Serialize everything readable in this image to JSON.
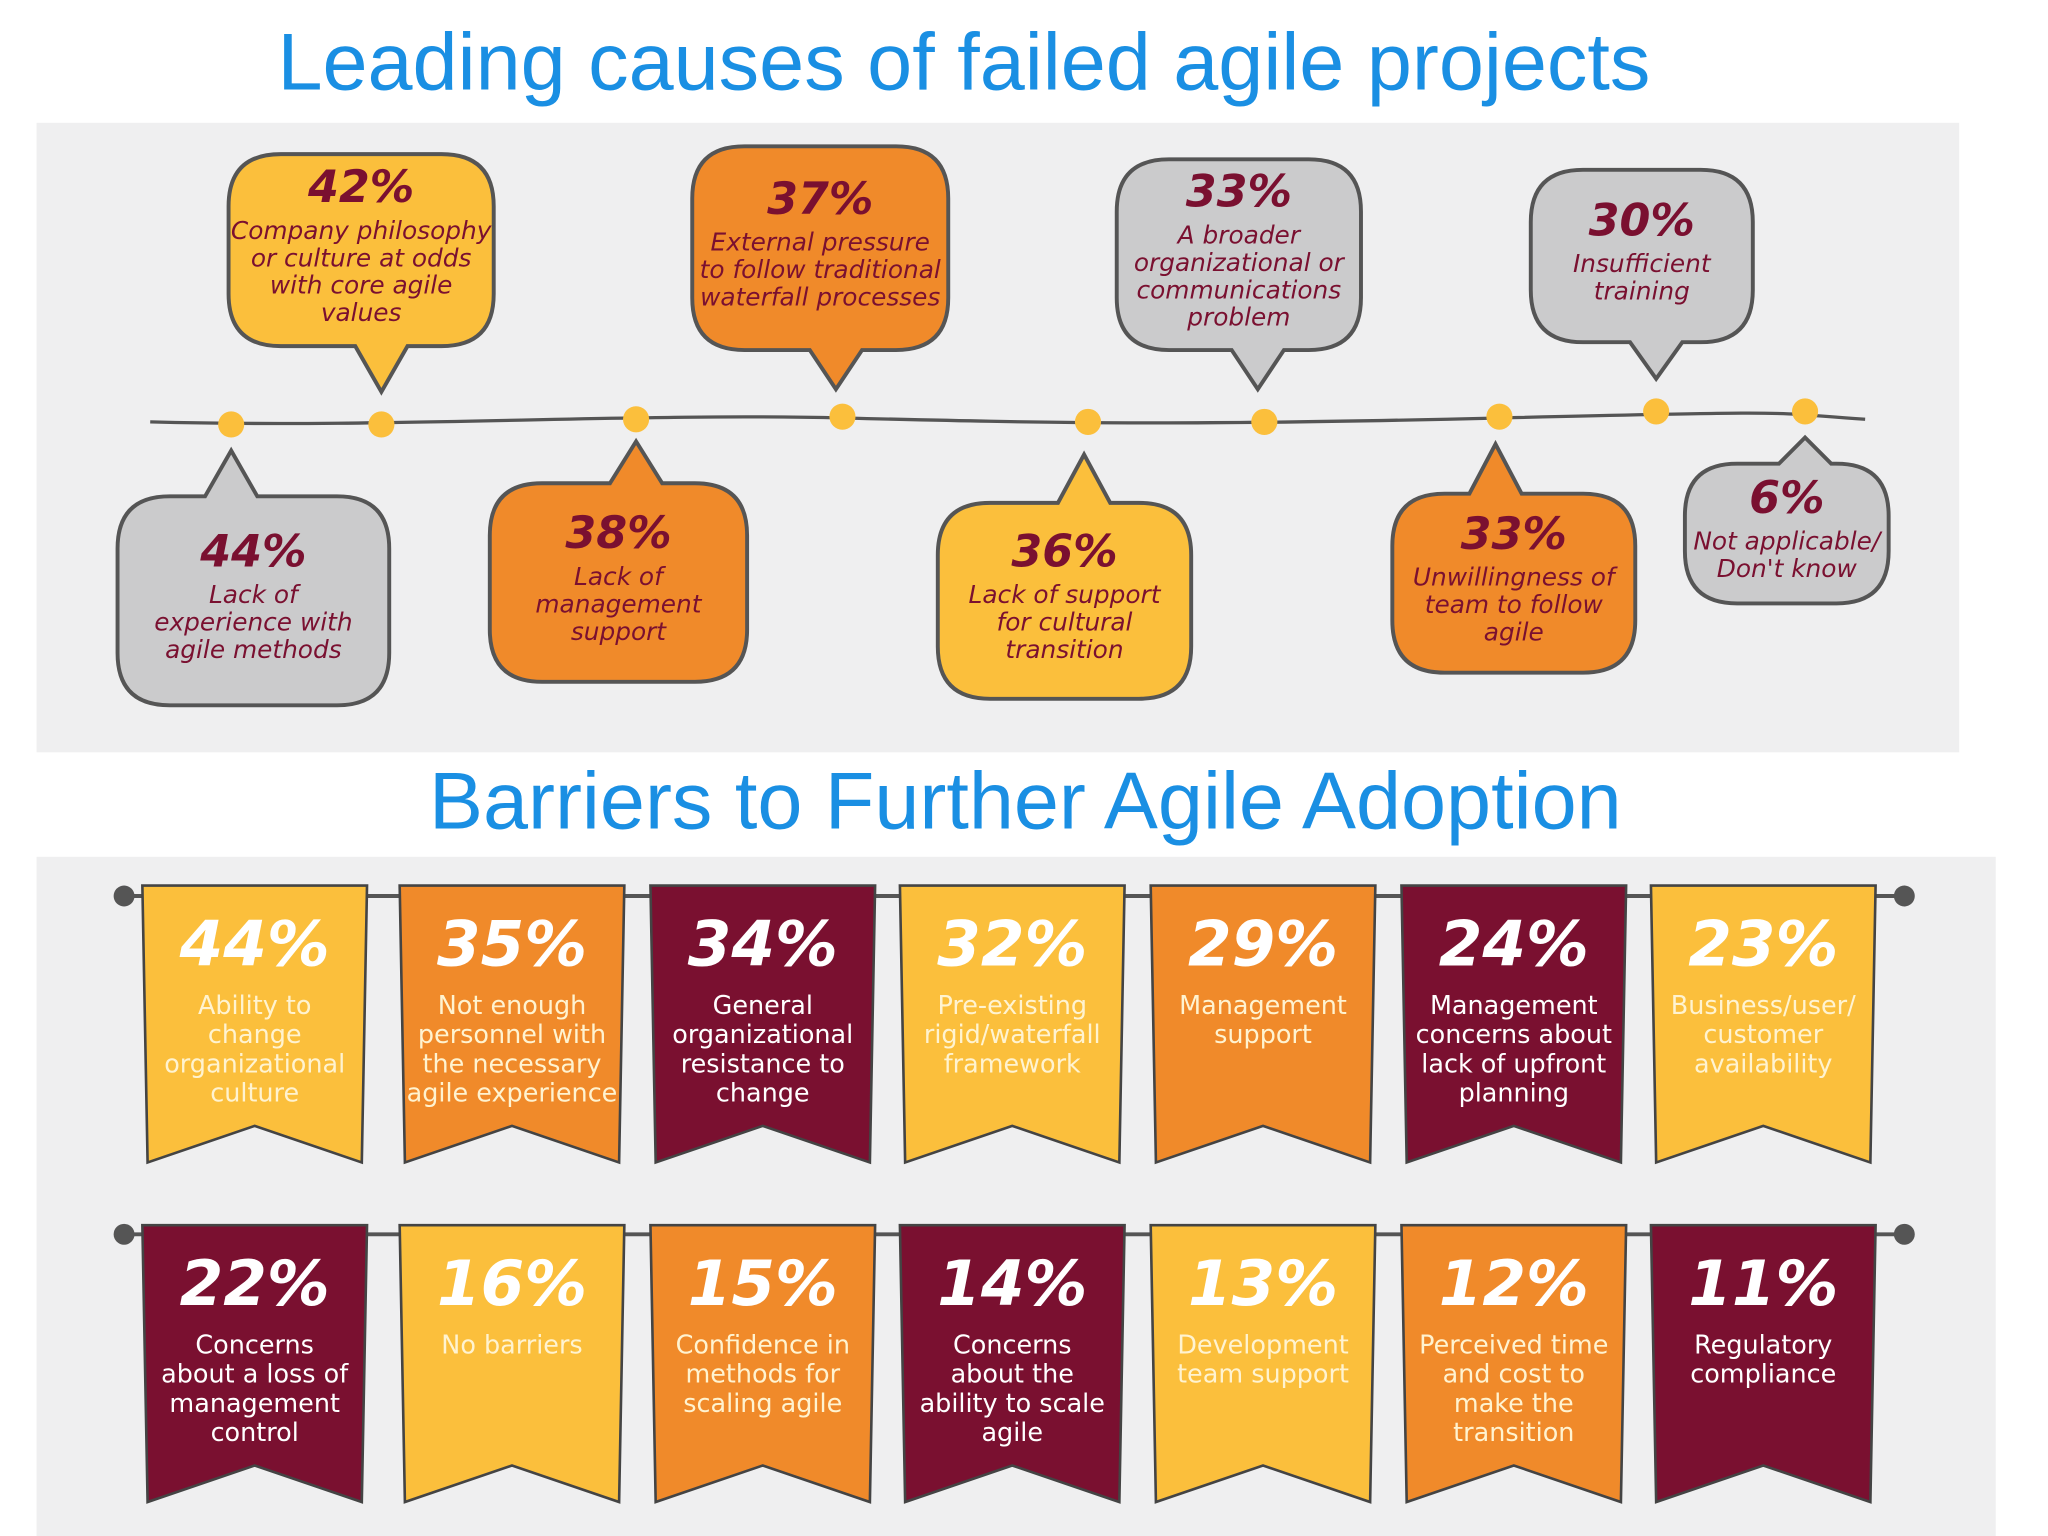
{
  "title": "Leading causes of failed agile projects",
  "failure_causes": [
    {
      "percent": "44%",
      "label": [
        "Lack of",
        "experience with",
        "agile methods"
      ],
      "color": "#cbcbcc"
    },
    {
      "percent": "42%",
      "label": [
        "Company philosophy",
        "or culture at odds",
        "with core agile",
        "values"
      ],
      "color": "#fbbf3c"
    },
    {
      "percent": "38%",
      "label": [
        "Lack of",
        "management",
        "support"
      ],
      "color": "#f08a2a"
    },
    {
      "percent": "37%",
      "label": [
        "External pressure",
        "to follow traditional",
        "waterfall processes"
      ],
      "color": "#f08a2a"
    },
    {
      "percent": "36%",
      "label": [
        "Lack of support",
        "for cultural",
        "transition"
      ],
      "color": "#fbbf3c"
    },
    {
      "percent": "33%",
      "label": [
        "A broader",
        "organizational or",
        "communications",
        "problem"
      ],
      "color": "#cbcbcc"
    },
    {
      "percent": "33%",
      "label": [
        "Unwillingness of",
        "team to follow",
        "agile"
      ],
      "color": "#f08a2a"
    },
    {
      "percent": "30%",
      "label": [
        "Insufficient",
        "training"
      ],
      "color": "#cbcbcc"
    },
    {
      "percent": "6%",
      "label": [
        "Not applicable/",
        "Don't know"
      ],
      "color": "#cbcbcc"
    }
  ],
  "barriers_title": "Barriers to Further Agile Adoption",
  "barriers": [
    {
      "percent": "44%",
      "label": [
        "Ability to",
        "change",
        "organizational",
        "culture"
      ],
      "color": "#fbbf3c"
    },
    {
      "percent": "35%",
      "label": [
        "Not enough",
        "personnel with",
        "the necessary",
        "agile experience"
      ],
      "color": "#f08a2a"
    },
    {
      "percent": "34%",
      "label": [
        "General",
        "organizational",
        "resistance to",
        "change"
      ],
      "color": "#7a1030"
    },
    {
      "percent": "32%",
      "label": [
        "Pre-existing",
        "rigid/waterfall",
        "framework"
      ],
      "color": "#fbbf3c"
    },
    {
      "percent": "29%",
      "label": [
        "Management",
        "support"
      ],
      "color": "#f08a2a"
    },
    {
      "percent": "24%",
      "label": [
        "Management",
        "concerns about",
        "lack of upfront",
        "planning"
      ],
      "color": "#7a1030"
    },
    {
      "percent": "23%",
      "label": [
        "Business/user/",
        "customer",
        "availability"
      ],
      "color": "#fbbf3c"
    },
    {
      "percent": "22%",
      "label": [
        "Concerns",
        "about a loss of",
        "management",
        "control"
      ],
      "color": "#7a1030"
    },
    {
      "percent": "16%",
      "label": [
        "No barriers"
      ],
      "color": "#fbbf3c"
    },
    {
      "percent": "15%",
      "label": [
        "Confidence in",
        "methods for",
        "scaling agile"
      ],
      "color": "#f08a2a"
    },
    {
      "percent": "14%",
      "label": [
        "Concerns",
        "about the",
        "ability to scale",
        "agile"
      ],
      "color": "#7a1030"
    },
    {
      "percent": "13%",
      "label": [
        "Development",
        "team support"
      ],
      "color": "#fbbf3c"
    },
    {
      "percent": "12%",
      "label": [
        "Perceived time",
        "and cost to",
        "make the",
        "transition"
      ],
      "color": "#f08a2a"
    },
    {
      "percent": "11%",
      "label": [
        "Regulatory",
        "compliance"
      ],
      "color": "#7a1030"
    }
  ]
}
